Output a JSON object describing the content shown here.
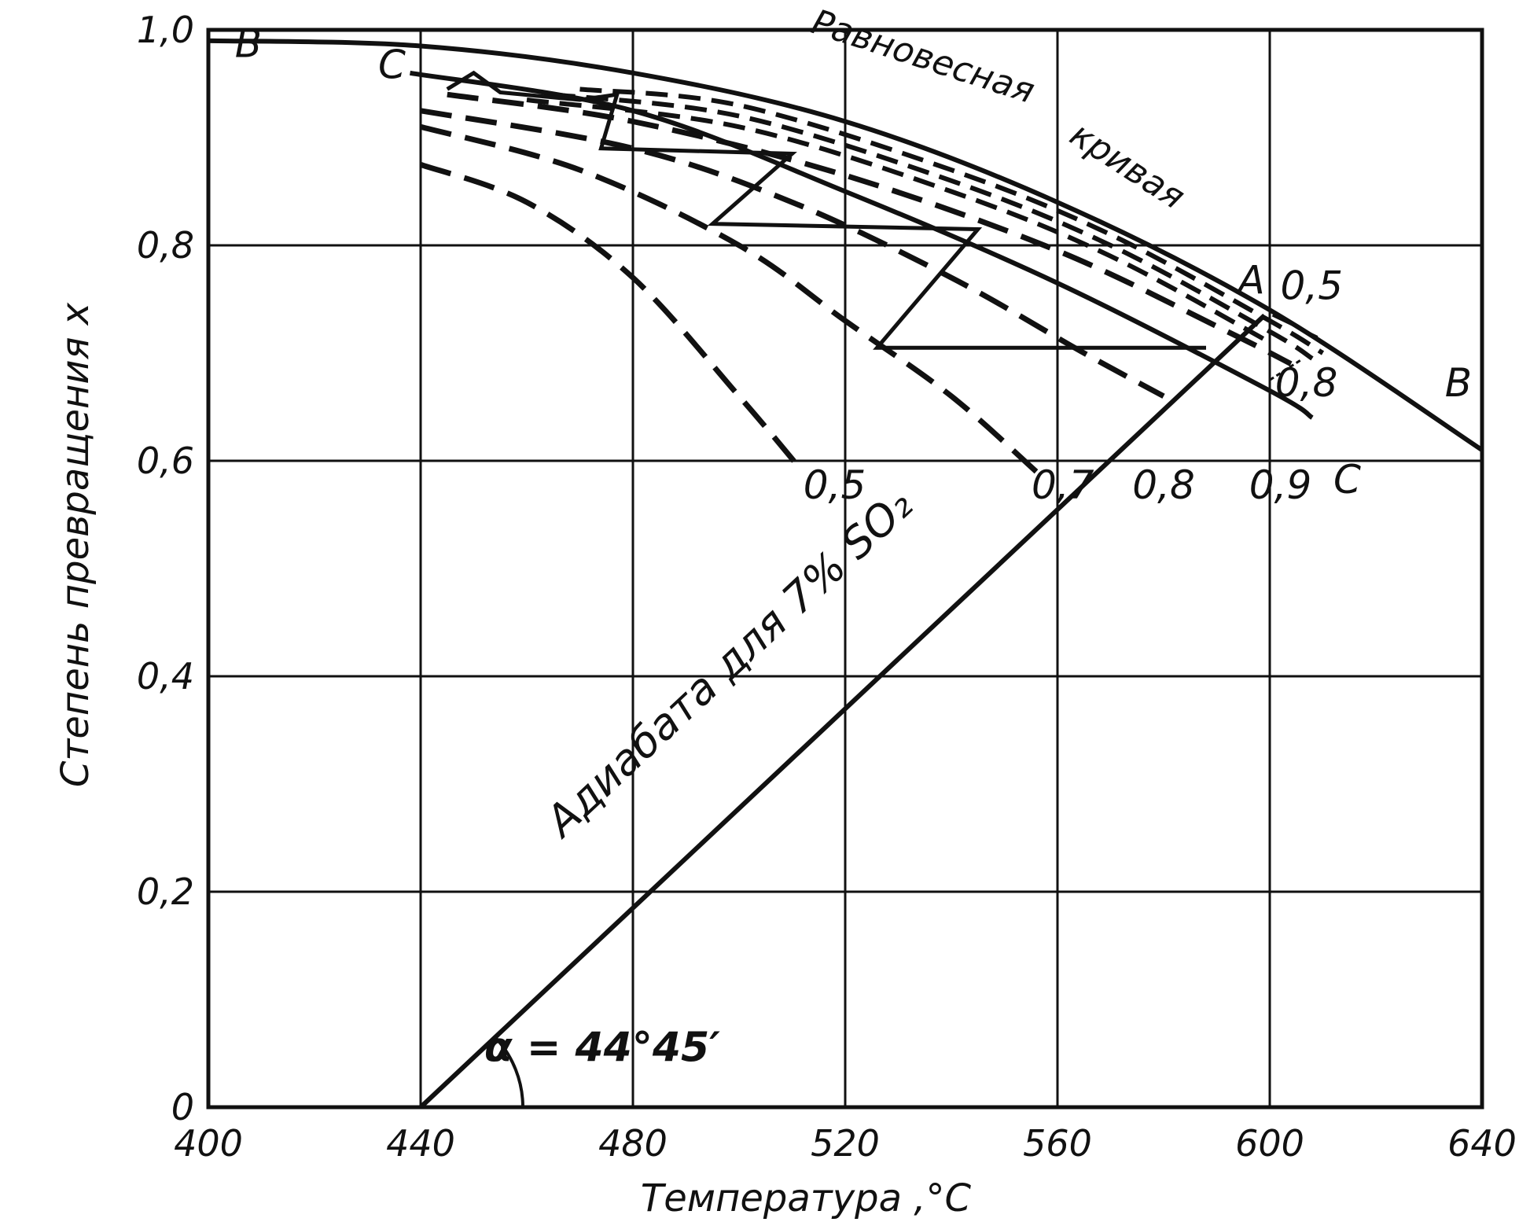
{
  "chart_data": {
    "type": "line",
    "xlabel": "Температура ,°С",
    "ylabel": "Степень превращения x",
    "xlim": [
      400,
      640
    ],
    "ylim": [
      0,
      1.0
    ],
    "x_ticks": [
      "400",
      "440",
      "480",
      "520",
      "560",
      "600",
      "640"
    ],
    "y_ticks": [
      "0",
      "0,2",
      "0,4",
      "0,6",
      "0,8",
      "1,0"
    ],
    "grid": true,
    "equilibrium": {
      "name": "Равновесная кривая",
      "end_label": "B",
      "points": [
        [
          400,
          0.99
        ],
        [
          440,
          0.985
        ],
        [
          480,
          0.96
        ],
        [
          520,
          0.915
        ],
        [
          560,
          0.84
        ],
        [
          600,
          0.74
        ],
        [
          640,
          0.61
        ]
      ]
    },
    "optimal": {
      "label": "C",
      "points": [
        [
          438,
          0.96
        ],
        [
          480,
          0.925
        ],
        [
          520,
          0.85
        ],
        [
          560,
          0.765
        ],
        [
          600,
          0.665
        ],
        [
          608,
          0.64
        ]
      ]
    },
    "rate_curves": [
      {
        "name": "0,5",
        "points": [
          [
            440,
            0.875
          ],
          [
            460,
            0.84
          ],
          [
            480,
            0.77
          ],
          [
            500,
            0.66
          ],
          [
            512,
            0.59
          ]
        ],
        "label_at": [
          518,
          0.565
        ]
      },
      {
        "name": "0,7",
        "points": [
          [
            440,
            0.91
          ],
          [
            470,
            0.87
          ],
          [
            500,
            0.8
          ],
          [
            520,
            0.73
          ],
          [
            540,
            0.66
          ],
          [
            556,
            0.59
          ]
        ],
        "label_at": [
          561,
          0.565
        ]
      },
      {
        "name": "0,8",
        "points": [
          [
            440,
            0.925
          ],
          [
            480,
            0.89
          ],
          [
            510,
            0.84
          ],
          [
            540,
            0.77
          ],
          [
            565,
            0.7
          ],
          [
            580,
            0.66
          ]
        ],
        "label_at": [
          580,
          0.565
        ]
      },
      {
        "name": "0,9",
        "points": [
          [
            445,
            0.94
          ],
          [
            480,
            0.915
          ],
          [
            520,
            0.865
          ],
          [
            560,
            0.795
          ],
          [
            592,
            0.72
          ],
          [
            604,
            0.69
          ]
        ],
        "label_at": [
          602,
          0.565
        ]
      }
    ],
    "dashed_near_equilibrium": [
      {
        "points": [
          [
            470,
            0.945
          ],
          [
            500,
            0.93
          ],
          [
            540,
            0.87
          ],
          [
            570,
            0.81
          ],
          [
            600,
            0.73
          ],
          [
            610,
            0.7
          ]
        ]
      },
      {
        "points": [
          [
            465,
            0.94
          ],
          [
            500,
            0.92
          ],
          [
            540,
            0.86
          ],
          [
            570,
            0.8
          ],
          [
            600,
            0.72
          ],
          [
            608,
            0.695
          ]
        ]
      },
      {
        "points": [
          [
            460,
            0.935
          ],
          [
            500,
            0.91
          ],
          [
            540,
            0.85
          ],
          [
            570,
            0.79
          ],
          [
            600,
            0.71
          ]
        ]
      }
    ],
    "right_labels": [
      {
        "text": "0,5",
        "at": [
          602,
          0.75
        ]
      },
      {
        "text": "0,8",
        "at": [
          601,
          0.66
        ]
      },
      {
        "text": "A",
        "at": [
          594,
          0.755
        ]
      },
      {
        "text": "B",
        "at": [
          633,
          0.66
        ]
      },
      {
        "text": "C",
        "at": [
          612,
          0.57
        ]
      },
      {
        "text": "B",
        "at": [
          405,
          0.975
        ]
      },
      {
        "text": "C",
        "at": [
          432,
          0.955
        ]
      }
    ],
    "adiabat": {
      "name": "Адиабата для 7% SO₂",
      "points": [
        [
          440,
          0.0
        ],
        [
          599,
          0.735
        ]
      ],
      "angle_label": "α = 44°45′"
    },
    "staircase": [
      [
        445,
        0.945
      ],
      [
        450,
        0.96
      ],
      [
        455,
        0.942
      ],
      [
        470,
        0.935
      ],
      [
        477,
        0.94
      ],
      [
        474,
        0.89
      ],
      [
        510,
        0.885
      ],
      [
        495,
        0.82
      ],
      [
        545,
        0.815
      ],
      [
        526,
        0.705
      ],
      [
        588,
        0.705
      ]
    ],
    "equilibrium_label_lines": [
      "Равновесная",
      "кривая"
    ]
  }
}
